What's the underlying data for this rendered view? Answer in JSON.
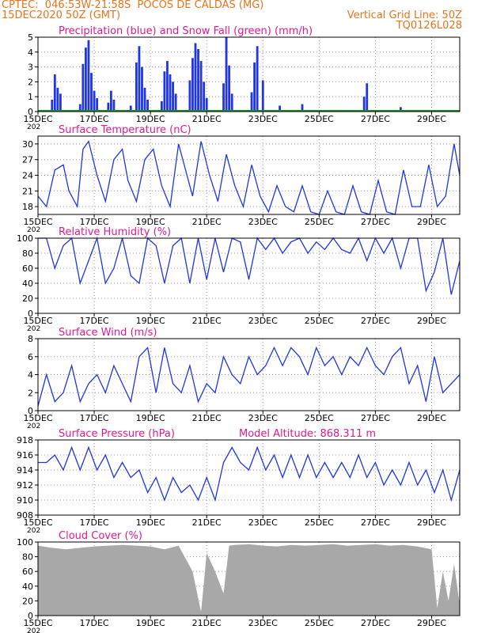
{
  "header": {
    "line1_left": "CPTEC:  046:53W-21:58S  POCOS DE CALDAS (MG)",
    "line2_left": "15DEC2020 50Z (GMT)",
    "line2_right": "Vertical Grid Line: 50Z",
    "line3_right": "TQ0126L028"
  },
  "colors": {
    "title": "#e01a8e",
    "header": "#e8731a",
    "precip": "#1f35e6",
    "snow": "#1a9a1a",
    "line": "#1f35e6",
    "cloud": "#a8a8a8",
    "grid": "#9a9a9a"
  },
  "xaxis": {
    "ticks": [
      "15DEC",
      "17DEC",
      "19DEC",
      "21DEC",
      "23DEC",
      "25DEC",
      "27DEC",
      "29DEC"
    ],
    "tick_days": [
      15,
      17,
      19,
      21,
      23,
      25,
      27,
      29
    ],
    "range_days": [
      15,
      30
    ],
    "year_label": "202"
  },
  "chart_data": [
    {
      "type": "bar",
      "title": "Precipitation (blue) and Snow Fall (green) (mm/h)",
      "ylim": [
        0,
        5
      ],
      "yticks": [
        0,
        1,
        2,
        3,
        4,
        5
      ],
      "series": [
        {
          "name": "Precipitation",
          "x": [
            15.5,
            15.6,
            15.7,
            15.8,
            16.5,
            16.6,
            16.7,
            16.8,
            16.9,
            17.0,
            17.1,
            17.5,
            17.6,
            17.7,
            18.3,
            18.5,
            18.6,
            18.7,
            18.8,
            18.9,
            19.4,
            19.5,
            19.6,
            19.7,
            19.8,
            19.9,
            20.4,
            20.5,
            20.6,
            20.7,
            20.8,
            20.9,
            21.0,
            21.6,
            21.7,
            21.8,
            21.9,
            22.6,
            22.7,
            22.8,
            23.0,
            23.6,
            24.4,
            26.6,
            26.7,
            27.9
          ],
          "values": [
            0.8,
            2.5,
            1.6,
            1.2,
            0.5,
            3.2,
            4.3,
            4.8,
            2.6,
            1.4,
            0.9,
            0.6,
            1.4,
            0.8,
            0.4,
            3.3,
            4.4,
            3.0,
            1.6,
            0.8,
            0.7,
            2.7,
            3.4,
            2.5,
            2.0,
            1.2,
            2.1,
            3.6,
            4.6,
            4.2,
            3.4,
            2.0,
            0.9,
            1.9,
            5.0,
            3.1,
            1.2,
            1.3,
            3.3,
            4.4,
            2.1,
            0.4,
            0.5,
            1.0,
            1.9,
            0.3
          ]
        },
        {
          "name": "Snow Fall",
          "x": [
            15.0,
            30.0
          ],
          "values": [
            0,
            0
          ]
        }
      ]
    },
    {
      "type": "line",
      "title": "Surface Temperature (nC)",
      "ylim": [
        16.5,
        31.5
      ],
      "yticks": [
        18,
        21,
        24,
        27,
        30
      ],
      "series": [
        {
          "name": "Surface Temperature",
          "x": [
            15.0,
            15.3,
            15.6,
            15.9,
            16.1,
            16.4,
            16.6,
            16.8,
            17.1,
            17.4,
            17.7,
            18.0,
            18.2,
            18.5,
            18.8,
            19.1,
            19.4,
            19.7,
            20.0,
            20.3,
            20.5,
            20.8,
            21.1,
            21.4,
            21.7,
            22.0,
            22.3,
            22.6,
            22.9,
            23.2,
            23.5,
            23.8,
            24.1,
            24.4,
            24.7,
            25.0,
            25.3,
            25.6,
            25.9,
            26.2,
            26.5,
            26.8,
            27.1,
            27.4,
            27.7,
            28.0,
            28.3,
            28.6,
            28.9,
            29.2,
            29.5,
            29.8,
            30.0
          ],
          "values": [
            20,
            18,
            25,
            26,
            21,
            18,
            29,
            30.5,
            24,
            19,
            27,
            29,
            23,
            19,
            27,
            29,
            22,
            18,
            30,
            24,
            20,
            30.5,
            24,
            19,
            28,
            22,
            18,
            26,
            20,
            17,
            22,
            18,
            17,
            22,
            17,
            16.5,
            21,
            17,
            16.5,
            22,
            17,
            16.5,
            23,
            17,
            16.5,
            25,
            18,
            18,
            26,
            18,
            20,
            30,
            24
          ]
        }
      ]
    },
    {
      "type": "line",
      "title": "Relative Humidity (%)",
      "ylim": [
        0,
        100
      ],
      "yticks": [
        0,
        20,
        40,
        60,
        80,
        100
      ],
      "series": [
        {
          "name": "Relative Humidity",
          "x": [
            15.0,
            15.3,
            15.6,
            15.9,
            16.2,
            16.5,
            16.8,
            17.1,
            17.4,
            17.7,
            18.0,
            18.3,
            18.6,
            18.9,
            19.2,
            19.5,
            19.8,
            20.1,
            20.4,
            20.7,
            21.0,
            21.3,
            21.6,
            21.9,
            22.2,
            22.5,
            22.8,
            23.1,
            23.4,
            23.7,
            24.0,
            24.3,
            24.6,
            24.9,
            25.2,
            25.5,
            25.8,
            26.1,
            26.4,
            26.7,
            27.0,
            27.3,
            27.6,
            27.9,
            28.2,
            28.5,
            28.8,
            29.1,
            29.4,
            29.7,
            30.0
          ],
          "values": [
            100,
            100,
            60,
            90,
            100,
            40,
            70,
            100,
            40,
            60,
            100,
            50,
            40,
            100,
            90,
            40,
            90,
            100,
            40,
            100,
            45,
            100,
            55,
            100,
            95,
            45,
            100,
            85,
            100,
            80,
            95,
            100,
            80,
            95,
            85,
            100,
            85,
            80,
            100,
            70,
            100,
            80,
            100,
            60,
            100,
            100,
            30,
            55,
            100,
            25,
            70
          ]
        }
      ]
    },
    {
      "type": "line",
      "title": "Surface Wind (m/s)",
      "ylim": [
        0,
        8
      ],
      "yticks": [
        0,
        2,
        4,
        6,
        8
      ],
      "series": [
        {
          "name": "Surface Wind",
          "x": [
            15.0,
            15.3,
            15.6,
            15.9,
            16.2,
            16.5,
            16.8,
            17.1,
            17.4,
            17.7,
            18.0,
            18.3,
            18.6,
            18.9,
            19.2,
            19.5,
            19.8,
            20.1,
            20.4,
            20.7,
            21.0,
            21.3,
            21.6,
            21.9,
            22.2,
            22.5,
            22.8,
            23.1,
            23.4,
            23.7,
            24.0,
            24.3,
            24.6,
            24.9,
            25.2,
            25.5,
            25.8,
            26.1,
            26.4,
            26.7,
            27.0,
            27.3,
            27.6,
            27.9,
            28.2,
            28.5,
            28.8,
            29.1,
            29.4,
            29.7,
            30.0
          ],
          "values": [
            0.5,
            4,
            1,
            2,
            5,
            1,
            3,
            4,
            2,
            5,
            3,
            1,
            6,
            7,
            2,
            7,
            3,
            2,
            5,
            1,
            3,
            2,
            6,
            4,
            3,
            6,
            4,
            5,
            7,
            5,
            7,
            6,
            4,
            7,
            5,
            6,
            4,
            6,
            5,
            7,
            5,
            4,
            6,
            7,
            3,
            5,
            1,
            6,
            2,
            3,
            4
          ]
        }
      ]
    },
    {
      "type": "line",
      "title": "Surface Pressure (hPa)",
      "annotation": "Model Altitude: 868.311 m",
      "ylim": [
        908,
        918
      ],
      "yticks": [
        908,
        910,
        912,
        914,
        916,
        918
      ],
      "series": [
        {
          "name": "Surface Pressure",
          "x": [
            15.0,
            15.3,
            15.6,
            15.9,
            16.2,
            16.5,
            16.8,
            17.1,
            17.4,
            17.7,
            18.0,
            18.3,
            18.6,
            18.9,
            19.2,
            19.5,
            19.8,
            20.1,
            20.4,
            20.7,
            21.0,
            21.3,
            21.6,
            21.9,
            22.2,
            22.5,
            22.8,
            23.1,
            23.4,
            23.7,
            24.0,
            24.3,
            24.6,
            24.9,
            25.2,
            25.5,
            25.8,
            26.1,
            26.4,
            26.7,
            27.0,
            27.3,
            27.6,
            27.9,
            28.2,
            28.5,
            28.8,
            29.1,
            29.4,
            29.7,
            30.0
          ],
          "values": [
            915,
            915,
            916,
            914,
            917,
            914,
            917,
            914,
            916,
            913,
            915,
            913,
            914,
            911,
            913,
            910,
            913,
            911,
            912,
            910,
            913,
            910,
            915,
            917,
            915,
            914,
            917,
            914,
            916,
            913,
            916,
            913,
            916,
            913,
            915,
            913,
            915,
            913,
            916,
            913,
            915,
            912,
            914,
            912,
            915,
            912,
            914,
            911,
            914,
            910,
            914
          ]
        }
      ]
    },
    {
      "type": "area",
      "title": "Cloud Cover (%)",
      "ylim": [
        0,
        100
      ],
      "yticks": [
        0,
        20,
        40,
        60,
        80,
        100
      ],
      "series": [
        {
          "name": "Cloud Cover",
          "x": [
            15.0,
            15.5,
            16.0,
            16.5,
            17.0,
            17.5,
            18.0,
            18.5,
            19.0,
            19.5,
            20.0,
            20.5,
            20.8,
            21.0,
            21.3,
            21.6,
            21.8,
            22.0,
            22.5,
            23.0,
            23.5,
            24.0,
            24.5,
            25.0,
            25.5,
            26.0,
            26.5,
            27.0,
            27.5,
            28.0,
            28.5,
            29.0,
            29.2,
            29.4,
            29.6,
            29.8,
            30.0
          ],
          "values": [
            95,
            92,
            90,
            92,
            94,
            95,
            96,
            95,
            94,
            90,
            95,
            60,
            5,
            85,
            60,
            30,
            95,
            96,
            97,
            95,
            94,
            96,
            95,
            96,
            97,
            95,
            96,
            97,
            95,
            96,
            94,
            90,
            10,
            60,
            20,
            70,
            15
          ]
        }
      ]
    }
  ]
}
